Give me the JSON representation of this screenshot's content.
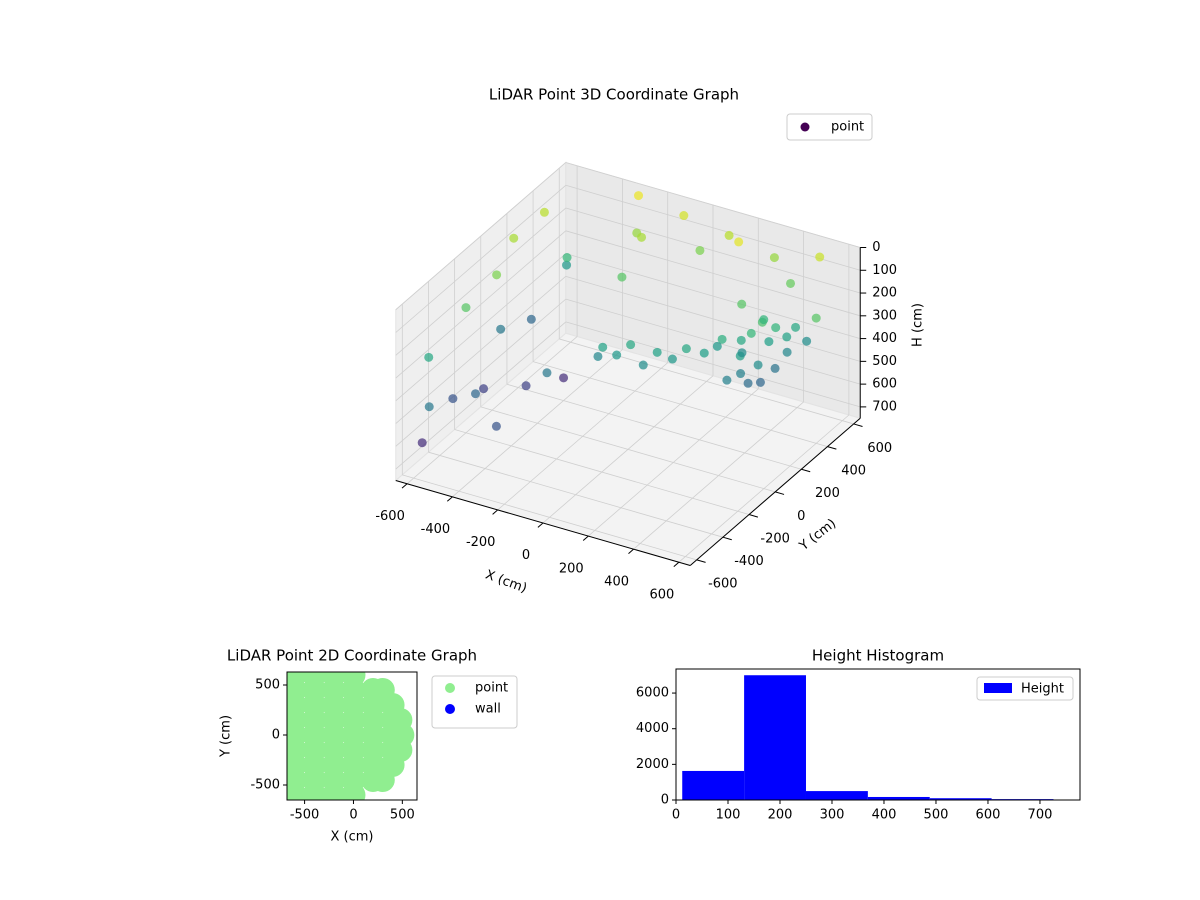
{
  "chart_data": [
    {
      "type": "scatter3d",
      "title": "LiDAR Point 3D Coordinate Graph",
      "xlabel": "X (cm)",
      "ylabel": "Y (cm)",
      "zlabel": "H (cm)",
      "xlim": [
        -650,
        650
      ],
      "ylim": [
        -650,
        650
      ],
      "zlim": [
        0,
        750
      ],
      "z_inverted": true,
      "xticks": [
        -600,
        -400,
        -200,
        0,
        200,
        400,
        600
      ],
      "yticks": [
        -600,
        -400,
        -200,
        0,
        200,
        400,
        600
      ],
      "zticks": [
        0,
        100,
        200,
        300,
        400,
        500,
        600,
        700
      ],
      "colormap": "viridis",
      "color_by": "h",
      "legend": "upper right",
      "series": [
        {
          "name": "point",
          "x": [
            400,
            420,
            450,
            470,
            460,
            430,
            400,
            380,
            370,
            380,
            350,
            330,
            300,
            250,
            200,
            150,
            100,
            50,
            0,
            -50,
            -100,
            -150,
            300,
            480,
            500,
            350,
            250,
            430,
            420,
            380,
            -620,
            -600,
            -580,
            -620,
            -600,
            -560,
            -620,
            -600,
            -580,
            -620,
            -600,
            -560,
            -500,
            -450,
            -400,
            -500,
            -350,
            -300,
            -200,
            -250,
            -100,
            100,
            300,
            500,
            0,
            200,
            -300,
            400,
            -200,
            600
          ],
          "y": [
            250,
            300,
            350,
            400,
            420,
            380,
            320,
            260,
            220,
            200,
            260,
            300,
            200,
            150,
            100,
            80,
            50,
            30,
            20,
            0,
            -20,
            30,
            350,
            450,
            500,
            150,
            250,
            250,
            350,
            380,
            -500,
            -300,
            -100,
            100,
            300,
            500,
            -450,
            -200,
            0,
            200,
            400,
            -550,
            -300,
            0,
            200,
            400,
            -400,
            -100,
            300,
            500,
            600,
            600,
            600,
            600,
            550,
            500,
            600,
            550,
            450,
            400
          ],
          "h": [
            250,
            220,
            260,
            320,
            400,
            460,
            500,
            480,
            420,
            330,
            300,
            380,
            280,
            330,
            300,
            350,
            320,
            380,
            300,
            350,
            320,
            400,
            200,
            300,
            380,
            420,
            350,
            380,
            330,
            260,
            650,
            550,
            600,
            450,
            500,
            350,
            300,
            200,
            150,
            100,
            80,
            450,
            500,
            600,
            650,
            250,
            550,
            450,
            200,
            120,
            50,
            80,
            120,
            60,
            150,
            30,
            20,
            180,
            100,
            200
          ]
        }
      ]
    },
    {
      "type": "scatter",
      "title": "LiDAR Point 2D Coordinate Graph",
      "xlabel": "X (cm)",
      "ylabel": "Y (cm)",
      "xlim": [
        -680,
        650
      ],
      "ylim": [
        -650,
        630
      ],
      "xticks": [
        -500,
        0,
        500
      ],
      "yticks": [
        -500,
        0,
        500
      ],
      "legend": "outside right",
      "series": [
        {
          "name": "point",
          "color": "#90ee90",
          "x": [
            -600,
            -400,
            -200,
            0,
            -600,
            -400,
            -200,
            0,
            200,
            300,
            -600,
            -400,
            -200,
            0,
            200,
            400,
            -600,
            -400,
            -200,
            0,
            200,
            400,
            480,
            -600,
            -400,
            -200,
            0,
            200,
            400,
            500,
            -600,
            -400,
            -200,
            0,
            200,
            400,
            480,
            -600,
            -400,
            -200,
            0,
            200,
            400,
            -600,
            -400,
            -200,
            0,
            200,
            300,
            -600,
            -400,
            -200,
            0
          ],
          "y": [
            600,
            600,
            600,
            600,
            450,
            450,
            450,
            450,
            450,
            450,
            300,
            300,
            300,
            300,
            300,
            300,
            150,
            150,
            150,
            150,
            150,
            150,
            150,
            0,
            0,
            0,
            0,
            0,
            0,
            0,
            -150,
            -150,
            -150,
            -150,
            -150,
            -150,
            -150,
            -300,
            -300,
            -300,
            -300,
            -300,
            -300,
            -450,
            -450,
            -450,
            -450,
            -450,
            -450,
            -600,
            -600,
            -600,
            -600
          ]
        },
        {
          "name": "wall",
          "color": "#0000ff",
          "x": [],
          "y": []
        }
      ]
    },
    {
      "type": "histogram",
      "title": "Height Histogram",
      "bins": [
        12,
        131,
        250,
        369,
        488,
        607,
        726
      ],
      "series": [
        {
          "name": "Height",
          "color": "#0000ff",
          "values": [
            1630,
            7000,
            500,
            170,
            100,
            50
          ]
        }
      ],
      "xlim": [
        0,
        777
      ],
      "ylim": [
        0,
        7350
      ],
      "xticks": [
        0,
        100,
        200,
        300,
        400,
        500,
        600,
        700
      ],
      "yticks": [
        0,
        2000,
        4000,
        6000
      ],
      "legend": "upper right"
    }
  ]
}
